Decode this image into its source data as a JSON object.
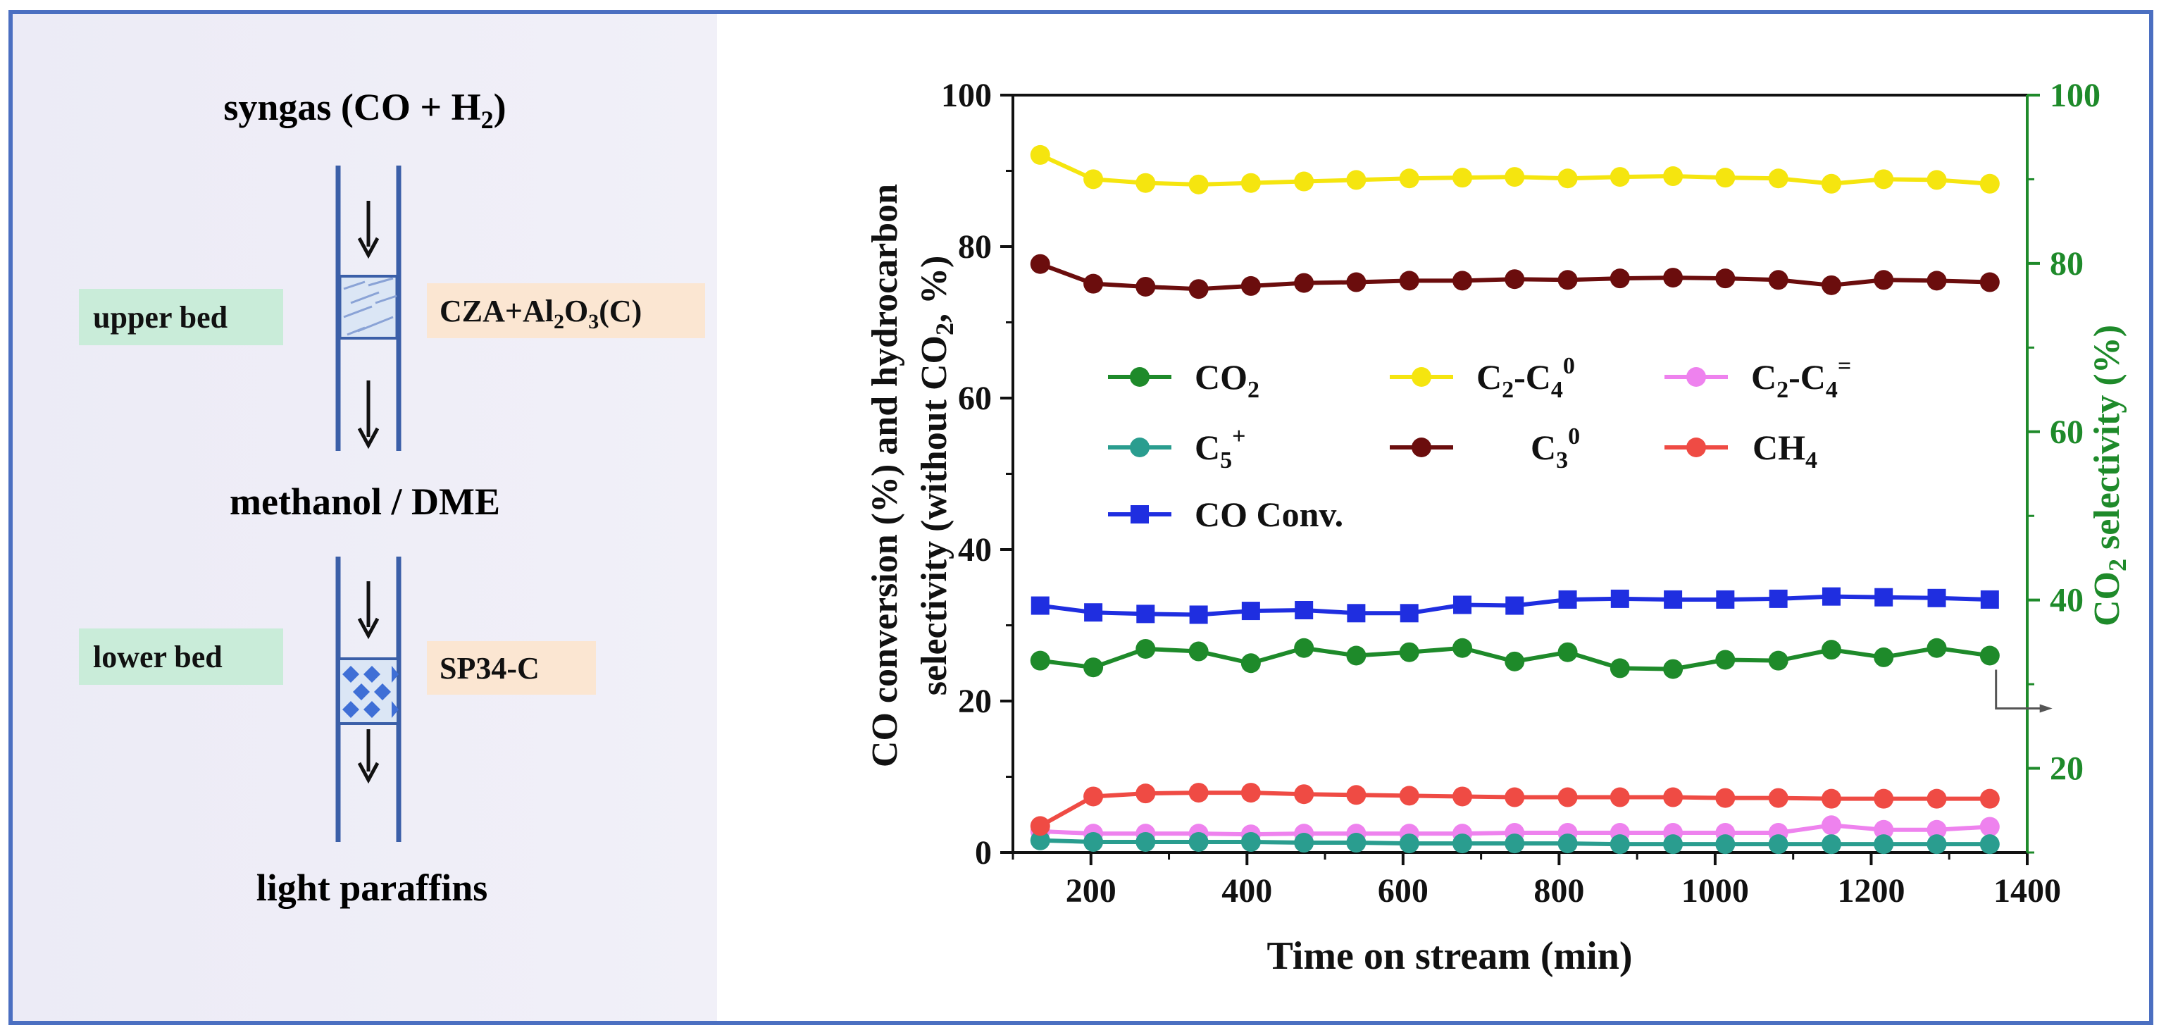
{
  "scheme": {
    "top_label": "syngas (CO + H",
    "top_label_sub": "2",
    "top_label_end": ")",
    "middle_label": "methanol / DME",
    "bottom_label": "light paraffins",
    "upper_bed_label": "upper bed",
    "upper_cat_pre": "CZA+Al",
    "upper_cat_sub1": "2",
    "upper_cat_mid": "O",
    "upper_cat_sub2": "3",
    "upper_cat_post": "(C)",
    "lower_bed_label": "lower bed",
    "lower_cat_label": "SP34-C",
    "tag_green": "#c9ecd9",
    "tag_orange": "#fbe6d2",
    "tube_color": "#3b5fa8",
    "bed_fill": "#dbe6f5"
  },
  "chart_data": {
    "type": "line",
    "title": "",
    "xlabel": "Time on stream (min)",
    "ylabel_line1": "CO conversion (%) and hydrocarbon",
    "ylabel_line2_pre": "selectivity (without CO",
    "ylabel_line2_sub": "2",
    "ylabel_line2_post": ", %)",
    "y2label_pre": "CO",
    "y2label_sub": "2",
    "y2label_post": " selectivity (%)",
    "xlim": [
      100,
      1400
    ],
    "ylim": [
      0,
      100
    ],
    "y2lim": [
      10,
      100
    ],
    "xticks": [
      200,
      400,
      600,
      800,
      1000,
      1200,
      1400
    ],
    "yticks": [
      0,
      20,
      40,
      60,
      80,
      100
    ],
    "y2ticks": [
      20,
      40,
      60,
      80,
      100
    ],
    "x": [
      135,
      203,
      270,
      338,
      405,
      473,
      540,
      608,
      676,
      743,
      811,
      878,
      946,
      1013,
      1081,
      1149,
      1216,
      1284,
      1352
    ],
    "series": [
      {
        "name": "CO2",
        "axis": "right",
        "color": "#1e8a2a",
        "marker": "circle",
        "legend_pre": "CO",
        "legend_sub": "2",
        "legend_sup": "",
        "values": [
          32.8,
          32.0,
          34.2,
          33.9,
          32.5,
          34.3,
          33.4,
          33.8,
          34.3,
          32.7,
          33.8,
          31.9,
          31.8,
          32.9,
          32.8,
          34.1,
          33.2,
          34.3,
          33.4
        ]
      },
      {
        "name": "C2-C4 paraffins",
        "axis": "left",
        "color": "#f5e50f",
        "marker": "circle",
        "legend_pre": "C",
        "legend_sub": "2",
        "legend_mid": "-C",
        "legend_sub2": "4",
        "legend_sup": "0",
        "values": [
          92.1,
          88.9,
          88.4,
          88.2,
          88.4,
          88.6,
          88.8,
          89.0,
          89.1,
          89.2,
          89.0,
          89.2,
          89.3,
          89.1,
          89.0,
          88.3,
          88.9,
          88.8,
          88.3
        ]
      },
      {
        "name": "C2-C4 olefins",
        "axis": "left",
        "color": "#ee82ee",
        "marker": "circle",
        "legend_pre": "C",
        "legend_sub": "2",
        "legend_mid": "-C",
        "legend_sub2": "4",
        "legend_sup": "=",
        "values": [
          2.8,
          2.5,
          2.5,
          2.5,
          2.4,
          2.5,
          2.5,
          2.5,
          2.5,
          2.6,
          2.6,
          2.6,
          2.6,
          2.6,
          2.6,
          3.6,
          3.0,
          3.0,
          3.4
        ]
      },
      {
        "name": "C5+",
        "axis": "left",
        "color": "#2a9d8f",
        "marker": "circle",
        "legend_pre": "C",
        "legend_sub": "5",
        "legend_sup": "+",
        "values": [
          1.6,
          1.4,
          1.4,
          1.4,
          1.4,
          1.3,
          1.3,
          1.2,
          1.2,
          1.2,
          1.2,
          1.1,
          1.1,
          1.1,
          1.1,
          1.1,
          1.1,
          1.1,
          1.1
        ]
      },
      {
        "name": "C3 paraffin",
        "axis": "left",
        "color": "#6b0d0d",
        "marker": "circle",
        "legend_pre": "C",
        "legend_sub": "3",
        "legend_sup": "0",
        "values": [
          77.7,
          75.1,
          74.7,
          74.4,
          74.8,
          75.2,
          75.3,
          75.5,
          75.5,
          75.7,
          75.6,
          75.8,
          75.9,
          75.8,
          75.6,
          74.9,
          75.6,
          75.5,
          75.3
        ]
      },
      {
        "name": "CH4",
        "axis": "left",
        "color": "#ef4b44",
        "marker": "circle",
        "legend_pre": "CH",
        "legend_sub": "4",
        "legend_sup": "",
        "values": [
          3.5,
          7.4,
          7.8,
          7.9,
          7.9,
          7.7,
          7.6,
          7.5,
          7.4,
          7.3,
          7.3,
          7.3,
          7.3,
          7.2,
          7.2,
          7.1,
          7.1,
          7.1,
          7.1
        ]
      },
      {
        "name": "CO Conv.",
        "axis": "left",
        "color": "#1f2ee0",
        "marker": "square",
        "legend_pre": "CO Conv.",
        "legend_sub": "",
        "legend_sup": "",
        "values": [
          32.6,
          31.7,
          31.5,
          31.4,
          31.9,
          32.0,
          31.6,
          31.6,
          32.7,
          32.6,
          33.4,
          33.5,
          33.4,
          33.4,
          33.5,
          33.8,
          33.7,
          33.6,
          33.4
        ]
      }
    ]
  }
}
